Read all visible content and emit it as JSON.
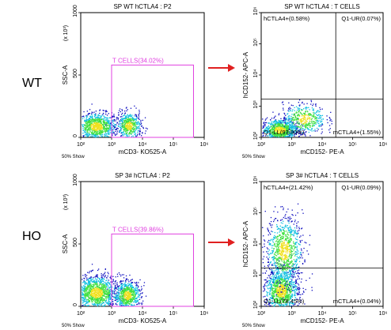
{
  "row_labels": [
    "WT",
    "HO"
  ],
  "colors": {
    "gate": "#e040e0",
    "arrow": "#e02020",
    "density_low": "#1010c0",
    "density_mid": "#10c0e0",
    "density_high": "#40e040",
    "density_peak": "#f0e020"
  },
  "chart_data": [
    {
      "type": "scatter",
      "title": "SP WT hCTLA4 : P2",
      "xlabel": "mCD3- KO525-A",
      "ylabel": "SSC-A",
      "ylabel_multiplier": "(x 10³)",
      "x_scale": "log",
      "xlim": [
        100,
        1000000
      ],
      "x_ticks": [
        "10²",
        "10³",
        "10⁴",
        "10⁵",
        "10⁶"
      ],
      "ylim": [
        0,
        1000
      ],
      "y_ticks": [
        "0",
        "500",
        "1000"
      ],
      "footnote": "50% Show",
      "gate": {
        "label": "T CELLS(34.02%)",
        "x": [
          1000,
          450000
        ],
        "y": [
          0,
          580
        ]
      },
      "populations": [
        {
          "x_log_center": 2.5,
          "x_log_spread": 0.35,
          "y_center": 90,
          "y_spread": 55,
          "count": 900
        },
        {
          "x_log_center": 3.55,
          "x_log_spread": 0.2,
          "y_center": 95,
          "y_spread": 55,
          "count": 500
        }
      ]
    },
    {
      "type": "scatter",
      "title": "SP WT hCTLA4 : T CELLS",
      "xlabel": "mCD152- PE-A",
      "ylabel": "hCD152- APC-A",
      "x_scale": "log",
      "y_scale": "log",
      "xlim": [
        100,
        1000000
      ],
      "ylim": [
        100,
        1000000
      ],
      "x_ticks": [
        "10²",
        "10³",
        "10⁴",
        "10⁵",
        "10⁶"
      ],
      "y_ticks": [
        "10²",
        "10³",
        "10⁴",
        "10⁵",
        "10⁶"
      ],
      "footnote": "50% Show",
      "quadrant_split": {
        "x": 28000,
        "y": 1700
      },
      "quadrants": {
        "UL": "hCTLA4+(0.58%)",
        "UR": "Q1-UR(0.07%)",
        "LL": "Q1-LL(97.80%)",
        "LR": "mCTLA4+(1.55%)"
      },
      "populations": [
        {
          "x_log_center": 2.6,
          "x_log_spread": 0.3,
          "y_log_center": 2.25,
          "y_log_spread": 0.18,
          "count": 900
        },
        {
          "x_log_center": 3.4,
          "x_log_spread": 0.35,
          "y_log_center": 2.6,
          "y_log_spread": 0.25,
          "count": 450
        }
      ]
    },
    {
      "type": "scatter",
      "title": "SP 3# hCTLA4 : P2",
      "xlabel": "mCD3- KO525-A",
      "ylabel": "SSC-A",
      "ylabel_multiplier": "(x 10³)",
      "x_scale": "log",
      "xlim": [
        100,
        1000000
      ],
      "x_ticks": [
        "10²",
        "10³",
        "10⁴",
        "10⁵",
        "10⁶"
      ],
      "ylim": [
        0,
        1000
      ],
      "y_ticks": [
        "0",
        "500",
        "1000"
      ],
      "footnote": "50% Show",
      "gate": {
        "label": "T CELLS(39.86%)",
        "x": [
          1000,
          450000
        ],
        "y": [
          0,
          580
        ]
      },
      "populations": [
        {
          "x_log_center": 2.5,
          "x_log_spread": 0.35,
          "y_center": 110,
          "y_spread": 70,
          "count": 1200
        },
        {
          "x_log_center": 3.5,
          "x_log_spread": 0.22,
          "y_center": 90,
          "y_spread": 60,
          "count": 700
        }
      ]
    },
    {
      "type": "scatter",
      "title": "SP 3# hCTLA4 : T CELLS",
      "xlabel": "mCD152- PE-A",
      "ylabel": "hCD152- APC-A",
      "x_scale": "log",
      "y_scale": "log",
      "xlim": [
        100,
        1000000
      ],
      "ylim": [
        100,
        1000000
      ],
      "x_ticks": [
        "10²",
        "10³",
        "10⁴",
        "10⁵",
        "10⁶"
      ],
      "y_ticks": [
        "10²",
        "10³",
        "10⁴",
        "10⁵",
        "10⁶"
      ],
      "footnote": "50% Show",
      "quadrant_split": {
        "x": 28000,
        "y": 1700
      },
      "quadrants": {
        "UL": "hCTLA4+(21.42%)",
        "UR": "Q1-UR(0.09%)",
        "LL": "Q1-LL(78.45%)",
        "LR": "mCTLA4+(0.04%)"
      },
      "populations": [
        {
          "x_log_center": 2.65,
          "x_log_spread": 0.28,
          "y_log_center": 2.5,
          "y_log_spread": 0.35,
          "count": 1100
        },
        {
          "x_log_center": 2.75,
          "x_log_spread": 0.3,
          "y_log_center": 3.8,
          "y_log_spread": 0.55,
          "count": 900
        }
      ]
    }
  ]
}
